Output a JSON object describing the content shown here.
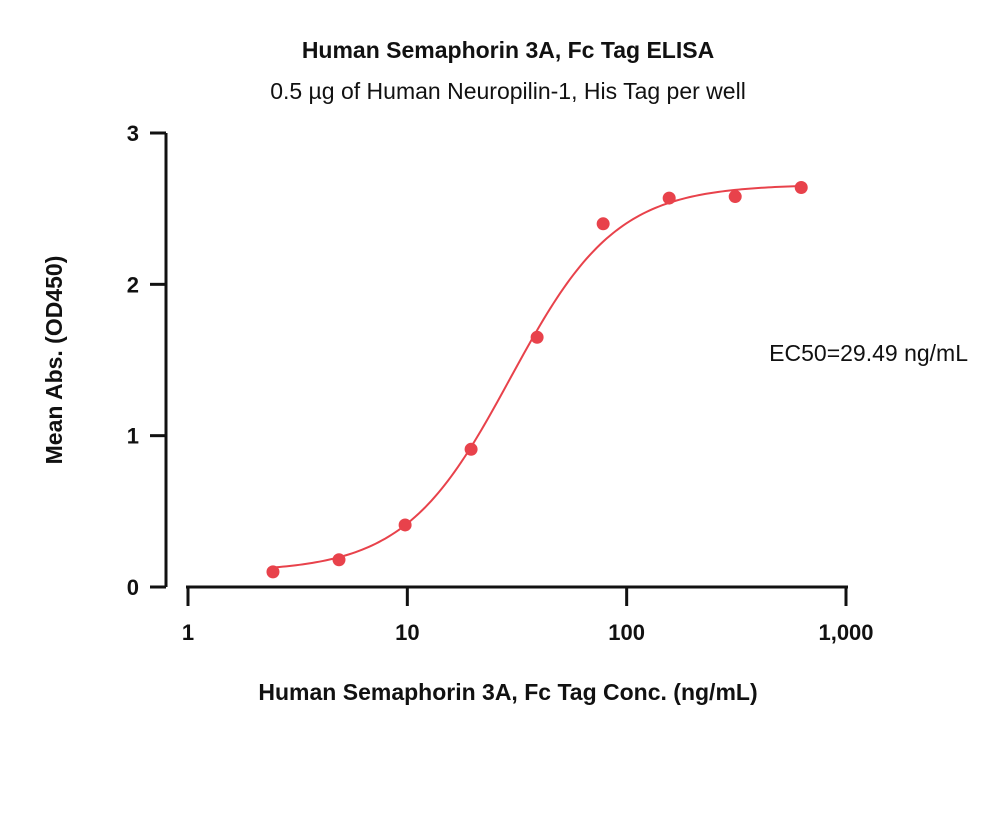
{
  "chart_data": {
    "type": "scatter",
    "title": "Human Semaphorin 3A, Fc Tag ELISA",
    "subtitle": "0.5 µg of Human Neuropilin-1, His Tag per well",
    "xlabel": "Human Semaphorin 3A, Fc Tag Conc. (ng/mL)",
    "ylabel": "Mean Abs. (OD450)",
    "x_scale": "log",
    "xlim": [
      1,
      1000
    ],
    "ylim": [
      0,
      3
    ],
    "x_ticks": [
      1,
      10,
      100,
      1000
    ],
    "x_tick_labels": [
      "1",
      "10",
      "100",
      "1,000"
    ],
    "y_ticks": [
      0,
      1,
      2,
      3
    ],
    "y_tick_labels": [
      "0",
      "1",
      "2",
      "3"
    ],
    "grid": false,
    "legend": "none",
    "color": "#e8424b",
    "series": [
      {
        "x": [
          2.44,
          4.88,
          9.77,
          19.53,
          39.06,
          78.13,
          156.25,
          312.5,
          625
        ],
        "y": [
          0.1,
          0.18,
          0.41,
          0.91,
          1.65,
          2.4,
          2.57,
          2.58,
          2.64
        ]
      }
    ],
    "fit": {
      "model": "4PL",
      "bottom": 0.1,
      "top": 2.66,
      "ec50": 29.49,
      "hill": 1.8
    },
    "annotation": "EC50=29.49 ng/mL"
  }
}
